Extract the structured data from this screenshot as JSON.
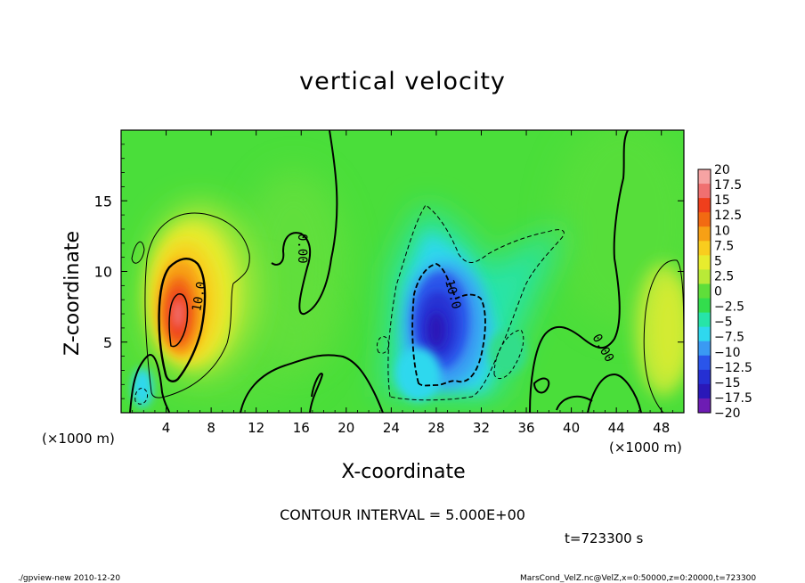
{
  "chart_data": {
    "type": "heatmap",
    "title": "vertical velocity",
    "xlabel": "X-coordinate",
    "ylabel": "Z-coordinate",
    "x_unit_left": "(×1000 m)",
    "x_unit_right": "(×1000 m)",
    "xlim": [
      0,
      50
    ],
    "ylim": [
      0,
      20
    ],
    "x_ticks": [
      "4",
      "8",
      "12",
      "16",
      "20",
      "24",
      "28",
      "32",
      "36",
      "40",
      "44",
      "48"
    ],
    "y_ticks": [
      "5",
      "10",
      "15"
    ],
    "colorbar_labels": [
      "20",
      "17.5",
      "15",
      "12.5",
      "10",
      "7.5",
      "5",
      "2.5",
      "0",
      "−2.5",
      "−5",
      "−7.5",
      "−10",
      "−12.5",
      "−15",
      "−17.5",
      "−20"
    ],
    "colorbar_colors": [
      "#f6a3a3",
      "#f07070",
      "#ef3f1c",
      "#f26a12",
      "#f7a015",
      "#f9cd1e",
      "#e7ec2e",
      "#b9ea37",
      "#5fde3a",
      "#33dd4d",
      "#27e4a8",
      "#2fd8ee",
      "#3a9af3",
      "#2a55ea",
      "#2530d3",
      "#2a18b8",
      "#6d1cb3"
    ],
    "contour_labels": [
      "10.0",
      "10.0",
      "0.00",
      "0.00"
    ],
    "contour_interval_text": "CONTOUR INTERVAL = 5.000E+00",
    "time_text": "t=723300 s",
    "footer_left": "./gpview-new   2010-12-20",
    "footer_right": "MarsCond_VelZ.nc@VelZ,x=0:50000,z=0:20000,t=723300",
    "features": [
      {
        "kind": "updraft",
        "x": 5.2,
        "z": 7.2,
        "peak": 17.5
      },
      {
        "kind": "downdraft",
        "x": 28.5,
        "z": 6.0,
        "peak": -15
      },
      {
        "kind": "weak_updraft",
        "x": 48.5,
        "z": 6.5,
        "peak": 5
      },
      {
        "kind": "weak_updraft",
        "x": 15.5,
        "z": 9.5,
        "peak": 2.5
      }
    ]
  }
}
